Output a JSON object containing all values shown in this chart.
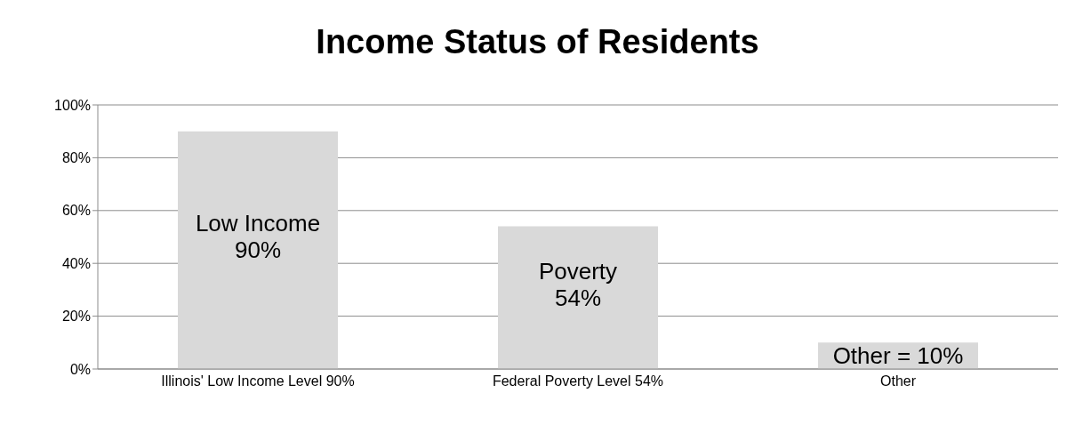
{
  "chart_data": {
    "type": "bar",
    "title": "Income Status of Residents",
    "categories": [
      "Illinois' Low Income Level 90%",
      "Federal Poverty Level 54%",
      "Other"
    ],
    "values": [
      90,
      54,
      10
    ],
    "color": "#d9d9d9",
    "value_labels": [
      "Low Income\n90%",
      "Poverty\n54%",
      "Other = 10%"
    ],
    "ylim": [
      0,
      100
    ],
    "yticks": [
      {
        "value": 0,
        "label": "0%"
      },
      {
        "value": 20,
        "label": "20%"
      },
      {
        "value": 40,
        "label": "40%"
      },
      {
        "value": 60,
        "label": "60%"
      },
      {
        "value": 80,
        "label": "80%"
      },
      {
        "value": 100,
        "label": "100%"
      }
    ],
    "grid": "y",
    "legend": false
  }
}
